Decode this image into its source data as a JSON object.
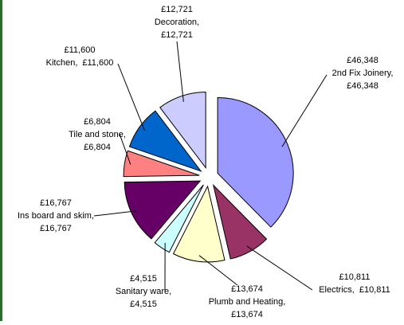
{
  "chart_data": {
    "type": "pie",
    "categories": [
      "2nd Fix Joinery,",
      "Electrics,",
      "Plumb and Heating,",
      "Sanitary ware,",
      "Ins board and skim,",
      "Tile and stone,",
      "Kitchen,",
      "Decoration,"
    ],
    "values": [
      46348,
      10811,
      13674,
      4515,
      16767,
      6804,
      11600,
      12721
    ],
    "value_labels": [
      "£46,348",
      "£10,811",
      "£13,674",
      "£4,515",
      "£16,767",
      "£6,804",
      "£11,600",
      "£12,721"
    ],
    "colors": [
      "#9999ff",
      "#993366",
      "#ffffcc",
      "#ccffff",
      "#660066",
      "#ff8080",
      "#0066cc",
      "#ccccff"
    ]
  }
}
